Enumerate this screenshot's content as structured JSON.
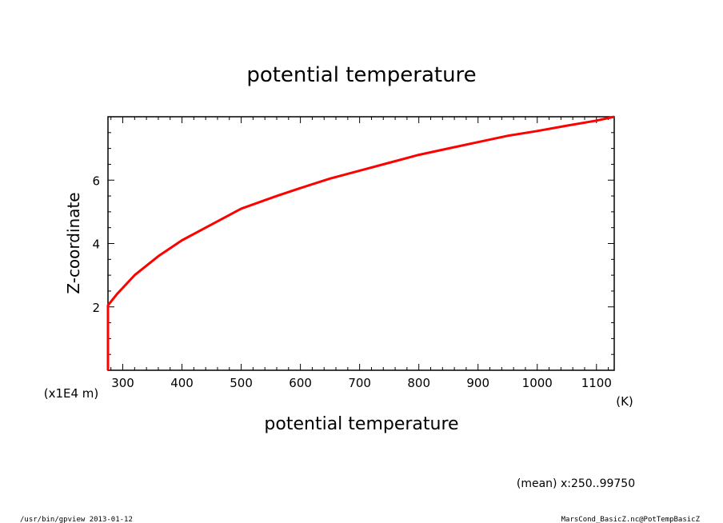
{
  "chart_data": {
    "type": "line",
    "title": "potential temperature",
    "xlabel": "potential temperature",
    "x_unit": "(K)",
    "ylabel": "Z-coordinate",
    "y_unit": "(x1E4 m)",
    "xlim": [
      275,
      1130
    ],
    "ylim": [
      0,
      8
    ],
    "x_ticks": [
      300,
      400,
      500,
      600,
      700,
      800,
      900,
      1000,
      1100
    ],
    "y_ticks": [
      2,
      4,
      6
    ],
    "grid": false,
    "series": [
      {
        "color": "#ff0000",
        "x": [
          275,
          275,
          275,
          290,
          320,
          360,
          400,
          450,
          500,
          560,
          600,
          650,
          700,
          750,
          800,
          850,
          900,
          950,
          1000,
          1050,
          1100,
          1130
        ],
        "y": [
          0,
          1.0,
          2.05,
          2.4,
          3.0,
          3.6,
          4.1,
          4.6,
          5.1,
          5.5,
          5.75,
          6.05,
          6.3,
          6.55,
          6.8,
          7.0,
          7.2,
          7.4,
          7.55,
          7.72,
          7.88,
          8.0
        ]
      }
    ]
  },
  "annotations": {
    "mean_range": "(mean) x:250..99750",
    "footer_left": "/usr/bin/gpview  2013-01-12",
    "footer_right": "MarsCond_BasicZ.nc@PotTempBasicZ"
  }
}
